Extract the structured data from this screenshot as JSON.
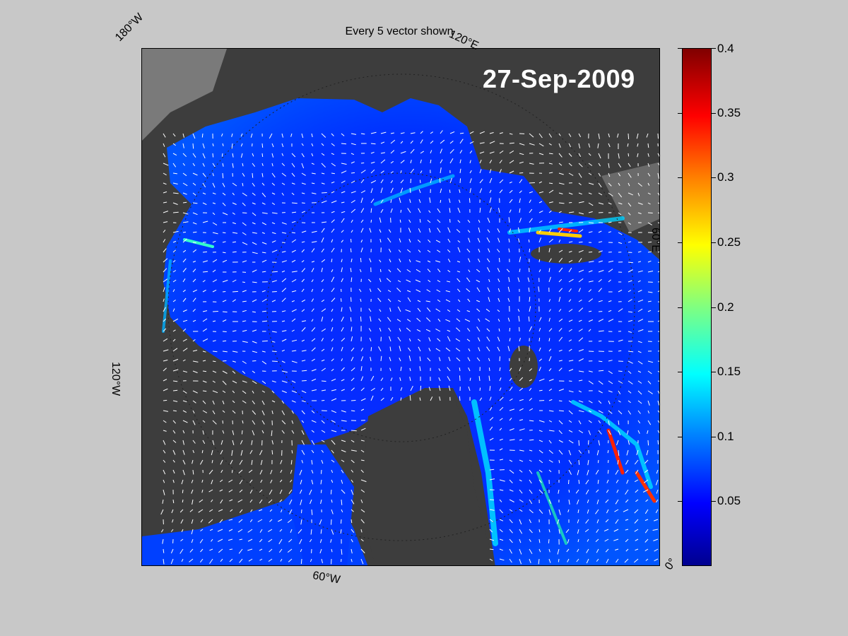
{
  "map": {
    "title": "Every 5 vector shown",
    "date": "27-Sep-2009",
    "coordinate_labels": {
      "w180": "180°W",
      "e120": "120°E",
      "e60": "60°E",
      "w120": "120°W",
      "w60": "60°W",
      "zero": "0°"
    },
    "colors": {
      "land": "#444444",
      "open_water": "#7a7a7a",
      "ice_low": "#0000ff",
      "vector": "#ffffff"
    }
  },
  "colorbar": {
    "min": 0,
    "max": 0.4,
    "ticks": [
      {
        "value": 0.4,
        "label": "0.4"
      },
      {
        "value": 0.35,
        "label": "0.35"
      },
      {
        "value": 0.3,
        "label": "0.3"
      },
      {
        "value": 0.25,
        "label": "0.25"
      },
      {
        "value": 0.2,
        "label": "0.2"
      },
      {
        "value": 0.15,
        "label": "0.15"
      },
      {
        "value": 0.1,
        "label": "0.1"
      },
      {
        "value": 0.05,
        "label": "0.05"
      }
    ],
    "colormap": "jet"
  }
}
